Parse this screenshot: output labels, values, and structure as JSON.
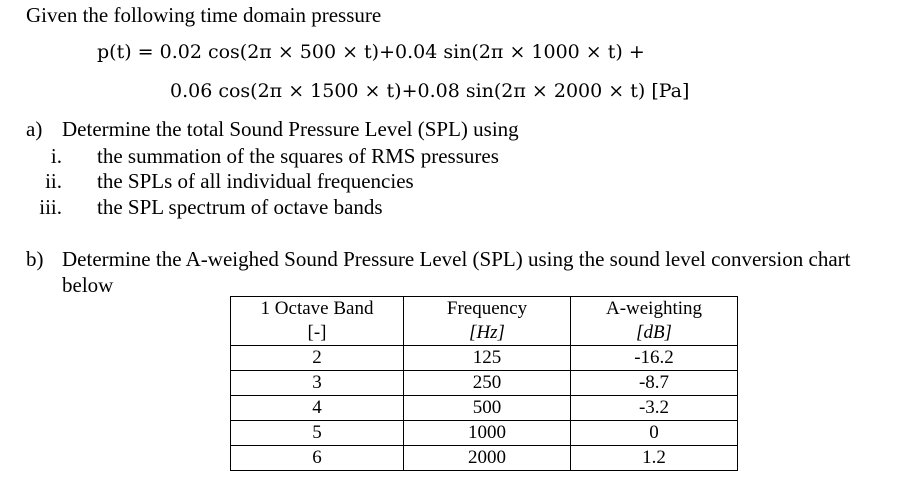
{
  "intro": "Given the following time domain pressure",
  "equation": {
    "line1": {
      "lhs": "p(t) = ",
      "t1": "0.02 cos(2π × 500 × t)+0.04 sin(2π × 1000 × t) +"
    },
    "line2": "0.06 cos(2π × 1500 × t)+0.08 sin(2π × 2000 × t) [Pa]"
  },
  "part_a": {
    "label": "a)",
    "text": "Determine the total Sound Pressure Level (SPL) using",
    "items": [
      {
        "num": "i.",
        "text": "the summation of the squares of RMS pressures"
      },
      {
        "num": "ii.",
        "text": "the SPLs of all individual frequencies"
      },
      {
        "num": "iii.",
        "text": "the SPL spectrum of octave bands"
      }
    ]
  },
  "part_b": {
    "label": "b)",
    "line1": "Determine the A-weighed Sound Pressure Level (SPL) using the sound level conversion chart",
    "line2": "below"
  },
  "table": {
    "headers": [
      "1 Octave Band",
      "Frequency",
      "A-weighting"
    ],
    "units": [
      "[-]",
      "[Hz]",
      "[dB]"
    ],
    "rows": [
      [
        "2",
        "125",
        "-16.2"
      ],
      [
        "3",
        "250",
        "-8.7"
      ],
      [
        "4",
        "500",
        "-3.2"
      ],
      [
        "5",
        "1000",
        "0"
      ],
      [
        "6",
        "2000",
        "1.2"
      ]
    ]
  }
}
